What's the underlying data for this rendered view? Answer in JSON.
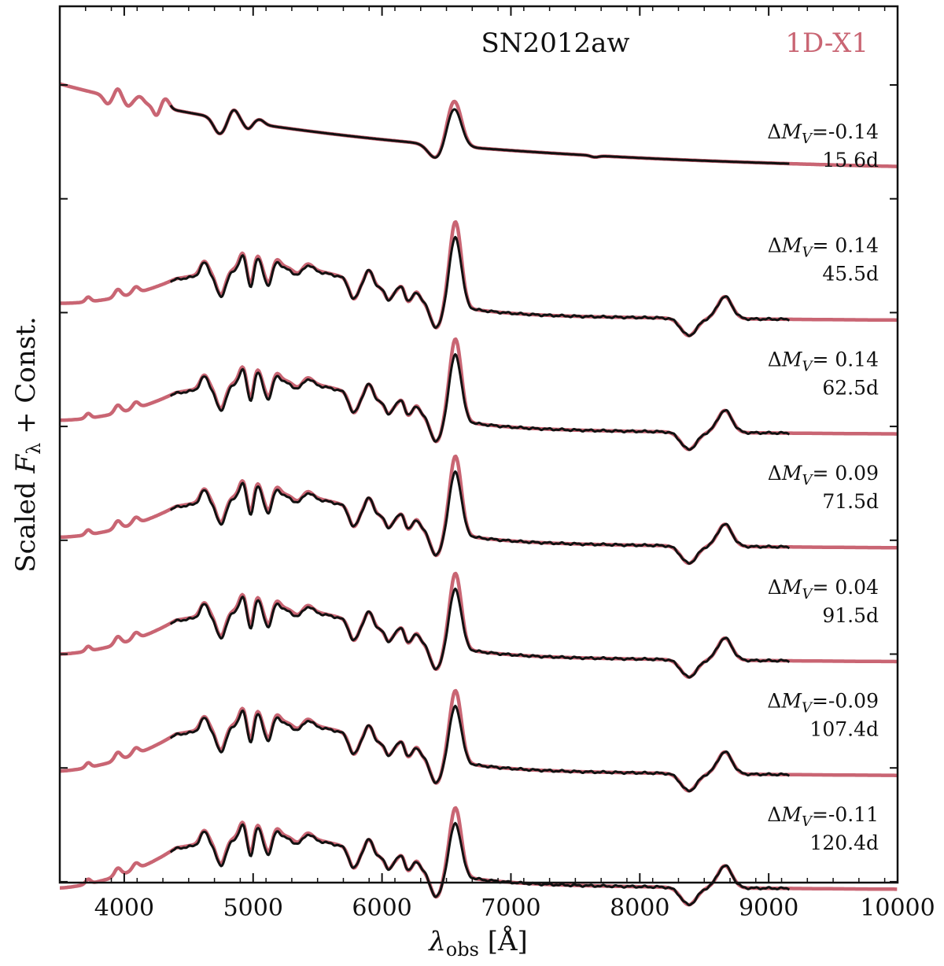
{
  "chart_data": {
    "type": "line",
    "object_name": "SN2012aw",
    "model_name": "1D-X1",
    "xlabel_symbol": "λ",
    "xlabel_subscript": "obs",
    "xlabel_unit": " [Å]",
    "ylabel_prefix": "Scaled ",
    "ylabel_symbol": "F",
    "ylabel_subscript": "λ",
    "ylabel_suffix": " + Const.",
    "xlim": [
      3500,
      10000
    ],
    "x_ticks": [
      4000,
      5000,
      6000,
      7000,
      8000,
      9000,
      10000
    ],
    "x_tick_labels": [
      "4000",
      "5000",
      "6000",
      "7000",
      "8000",
      "9000",
      "10000"
    ],
    "colors": {
      "model": "#c96573",
      "observed": "#111111"
    },
    "series_legend": [
      {
        "name": "SN2012aw",
        "role": "observed data",
        "color": "#111111"
      },
      {
        "name": "1D-X1",
        "role": "model",
        "color": "#c96573"
      }
    ],
    "epochs": [
      {
        "epoch": "15.6d",
        "delta_mv_label": "ΔM",
        "delta_mv_sub": "V",
        "delta_mv_value": "=-0.14",
        "delta_mv": -0.14
      },
      {
        "epoch": "45.5d",
        "delta_mv_label": "ΔM",
        "delta_mv_sub": "V",
        "delta_mv_value": "= 0.14",
        "delta_mv": 0.14
      },
      {
        "epoch": "62.5d",
        "delta_mv_label": "ΔM",
        "delta_mv_sub": "V",
        "delta_mv_value": "= 0.14",
        "delta_mv": 0.14
      },
      {
        "epoch": "71.5d",
        "delta_mv_label": "ΔM",
        "delta_mv_sub": "V",
        "delta_mv_value": "= 0.09",
        "delta_mv": 0.09
      },
      {
        "epoch": "91.5d",
        "delta_mv_label": "ΔM",
        "delta_mv_sub": "V",
        "delta_mv_value": "= 0.04",
        "delta_mv": 0.04
      },
      {
        "epoch": "107.4d",
        "delta_mv_label": "ΔM",
        "delta_mv_sub": "V",
        "delta_mv_value": "=-0.09",
        "delta_mv": -0.09
      },
      {
        "epoch": "120.4d",
        "delta_mv_label": "ΔM",
        "delta_mv_sub": "V",
        "delta_mv_value": "=-0.11",
        "delta_mv": -0.11
      }
    ]
  }
}
